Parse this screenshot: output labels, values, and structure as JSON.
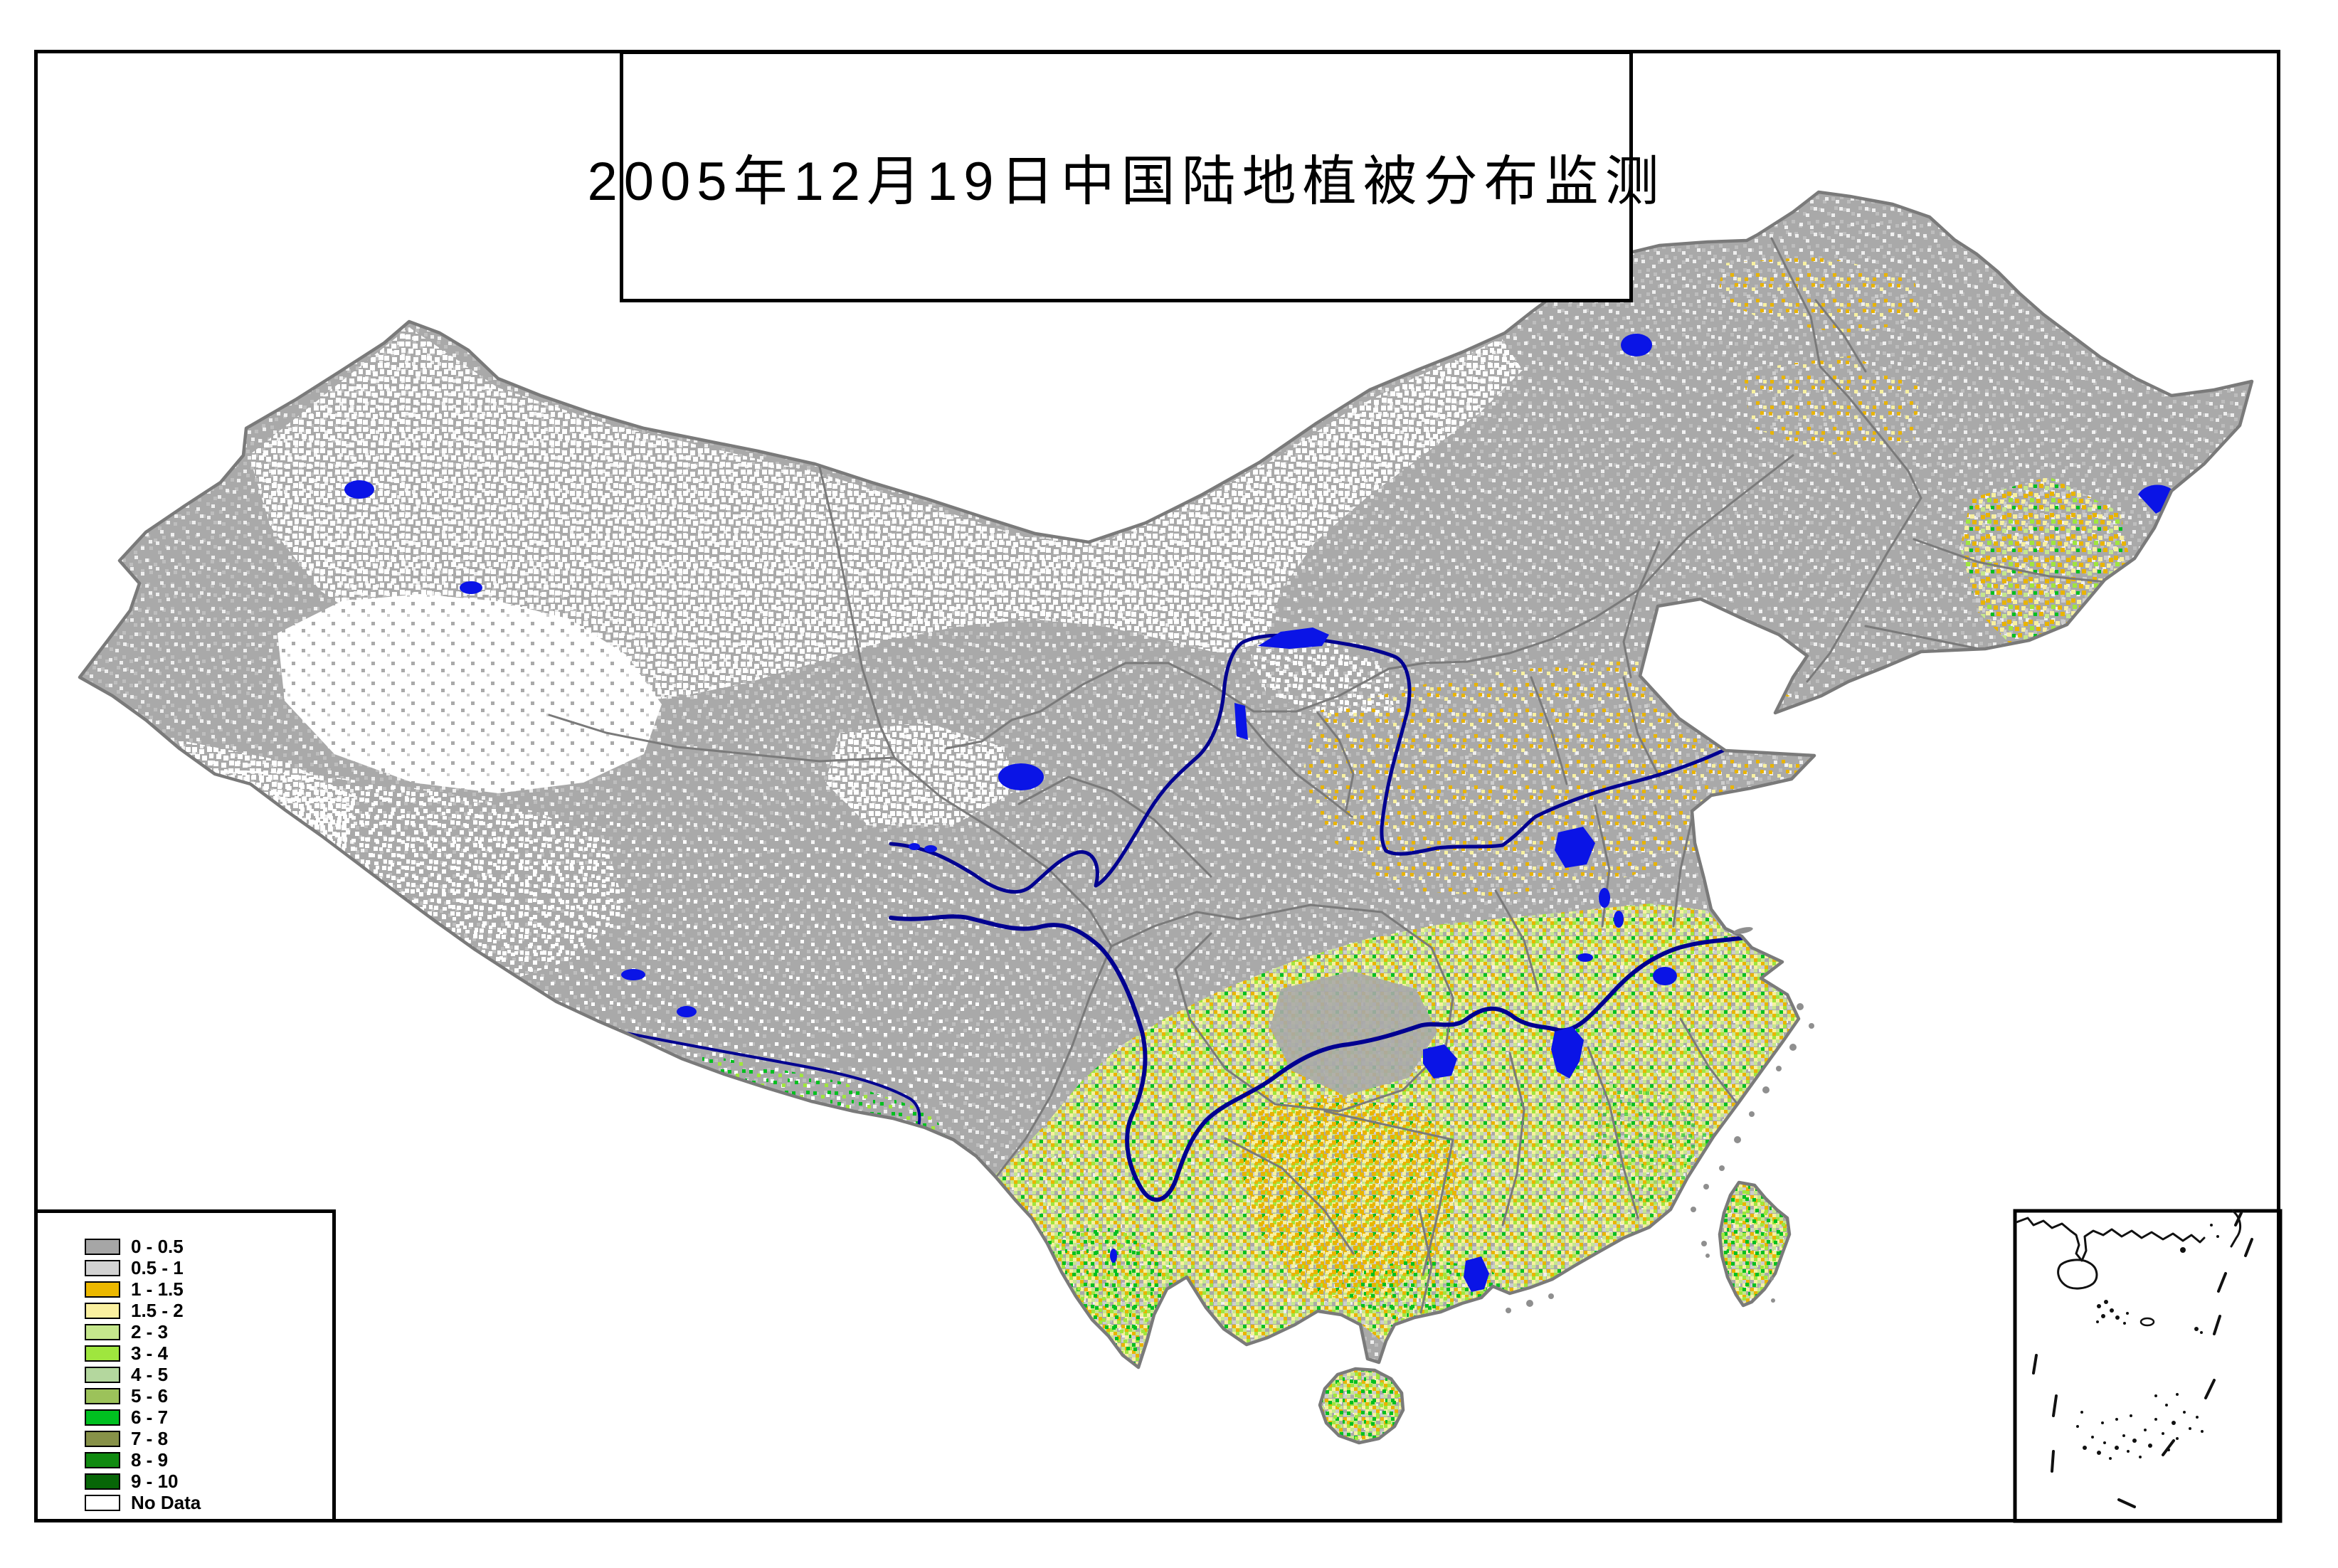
{
  "title": {
    "text": "2005年12月19日中国陆地植被分布监测"
  },
  "legend": {
    "items": [
      {
        "label": "0 - 0.5",
        "color": "#a6a6a6"
      },
      {
        "label": "0.5 - 1",
        "color": "#d2d2d2"
      },
      {
        "label": "1 - 1.5",
        "color": "#ecb800"
      },
      {
        "label": "1.5 - 2",
        "color": "#faf0a0"
      },
      {
        "label": "2 - 3",
        "color": "#c5e78c"
      },
      {
        "label": "3 - 4",
        "color": "#9fe63e"
      },
      {
        "label": "4 - 5",
        "color": "#b4d79e"
      },
      {
        "label": "5 - 6",
        "color": "#9cc25a"
      },
      {
        "label": "6 - 7",
        "color": "#00c020"
      },
      {
        "label": "7 - 8",
        "color": "#879148"
      },
      {
        "label": "8 - 9",
        "color": "#108a10"
      },
      {
        "label": "9 - 10",
        "color": "#076607"
      },
      {
        "label": "No Data",
        "color": "#ffffff"
      }
    ]
  },
  "map": {
    "colors": {
      "land": "#a9a9a9",
      "no_data": "#ffffff",
      "river": "#000090",
      "lake": "#0a14e6",
      "boundary": "#7a7a7a",
      "coast_island": "#8f8f8f",
      "frame": "#000000",
      "speckle_gold": "#e9b400",
      "speckle_pale_yellow": "#f7f0a0",
      "speckle_yellow_green": "#c5e78c",
      "speckle_chartreuse": "#9fe63e",
      "speckle_green": "#00c020",
      "speckle_light_gray": "#cdcdcd"
    }
  }
}
